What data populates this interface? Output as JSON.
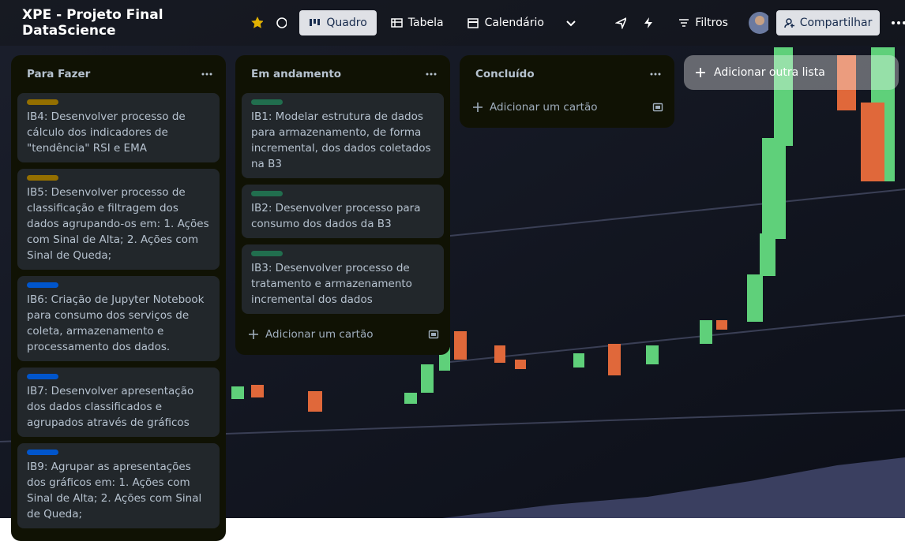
{
  "header": {
    "title": "XPE - Projeto Final DataScience",
    "views": [
      "Quadro",
      "Tabela",
      "Calendário"
    ],
    "filters": "Filtros",
    "share": "Compartilhar"
  },
  "lists": [
    {
      "title": "Para Fazer",
      "cards": [
        {
          "label_color": "#946f00",
          "text": "IB4: Desenvolver processo de cálculo dos indicadores de \"tendência\" RSI e EMA"
        },
        {
          "label_color": "#946f00",
          "text": "IB5: Desenvolver processo de classificação e filtragem dos dados agrupando-os em: 1. Ações com Sinal de Alta; 2. Ações com Sinal de Queda;"
        },
        {
          "label_color": "#0055cc",
          "text": "IB6: Criação de Jupyter Notebook para consumo dos serviços de coleta, armazenamento e processamento dos dados."
        },
        {
          "label_color": "#0055cc",
          "text": "IB7: Desenvolver apresentação dos dados classificados e agrupados através de gráficos"
        },
        {
          "label_color": "#0055cc",
          "text": "IB9: Agrupar as apresentações dos gráficos em: 1. Ações com Sinal de Alta; 2. Ações com Sinal de Queda;"
        }
      ]
    },
    {
      "title": "Em andamento",
      "cards": [
        {
          "label_color": "#216e4e",
          "text": "IB1: Modelar estrutura de dados para armazenamento, de forma incremental, dos dados coletados na B3"
        },
        {
          "label_color": "#216e4e",
          "text": "IB2: Desenvolver processo para consumo dos dados da B3"
        },
        {
          "label_color": "#216e4e",
          "text": "IB3: Desenvolver processo de tratamento e armazenamento incremental dos dados"
        }
      ],
      "add_card": "Adicionar um cartão"
    },
    {
      "title": "Concluído",
      "cards": [],
      "add_card": "Adicionar um cartão"
    }
  ],
  "add_list": "Adicionar outra lista"
}
